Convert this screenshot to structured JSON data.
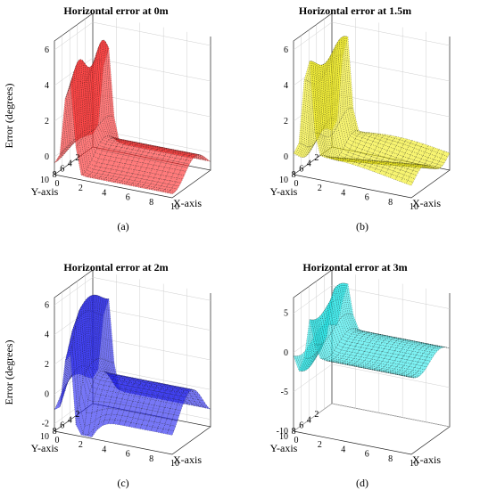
{
  "chart_data": [
    {
      "type": "surface",
      "title": "Horizontal error at 0m",
      "xlabel": "X-axis",
      "ylabel": "Y-axis",
      "zlabel": "Error (degrees)",
      "x_ticks": [
        "0",
        "2",
        "4",
        "6",
        "8",
        "10"
      ],
      "y_ticks": [
        "2",
        "4",
        "6",
        "8",
        "10"
      ],
      "z_ticks": [
        "0",
        "2",
        "4",
        "6"
      ],
      "xlim": [
        0,
        10
      ],
      "ylim": [
        0,
        10
      ],
      "zlim": [
        -1,
        6.5
      ],
      "color": "#ff2a2a",
      "caption": "(a)"
    },
    {
      "type": "surface",
      "title": "Horizontal error at 1.5m",
      "xlabel": "X-axis",
      "ylabel": "Y-axis",
      "zlabel": "",
      "x_ticks": [
        "0",
        "2",
        "4",
        "6",
        "8",
        "10"
      ],
      "y_ticks": [
        "2",
        "4",
        "6",
        "8",
        "10"
      ],
      "z_ticks": [
        "0",
        "2",
        "4",
        "6"
      ],
      "xlim": [
        0,
        10
      ],
      "ylim": [
        0,
        10
      ],
      "zlim": [
        -1,
        6.5
      ],
      "color": "#f2ee1a",
      "caption": "(b)"
    },
    {
      "type": "surface",
      "title": "Horizontal error at 2m",
      "xlabel": "X-axis",
      "ylabel": "Y-axis",
      "zlabel": "Error (degrees)",
      "x_ticks": [
        "0",
        "2",
        "4",
        "6",
        "8",
        "10"
      ],
      "y_ticks": [
        "2",
        "4",
        "6",
        "8",
        "10"
      ],
      "z_ticks": [
        "-2",
        "0",
        "2",
        "4",
        "6"
      ],
      "xlim": [
        0,
        10
      ],
      "ylim": [
        0,
        10
      ],
      "zlim": [
        -2.5,
        6.5
      ],
      "color": "#2323f0",
      "caption": "(c)"
    },
    {
      "type": "surface",
      "title": "Horizontal error at 3m",
      "xlabel": "X-axis",
      "ylabel": "Y-axis",
      "zlabel": "",
      "x_ticks": [
        "0",
        "2",
        "4",
        "6",
        "8",
        "10"
      ],
      "y_ticks": [
        "2",
        "4",
        "6",
        "8",
        "10"
      ],
      "z_ticks": [
        "-10",
        "-5",
        "0",
        "5"
      ],
      "xlim": [
        0,
        10
      ],
      "ylim": [
        0,
        10
      ],
      "zlim": [
        -10,
        7
      ],
      "color": "#2be8ea",
      "caption": "(d)"
    }
  ]
}
